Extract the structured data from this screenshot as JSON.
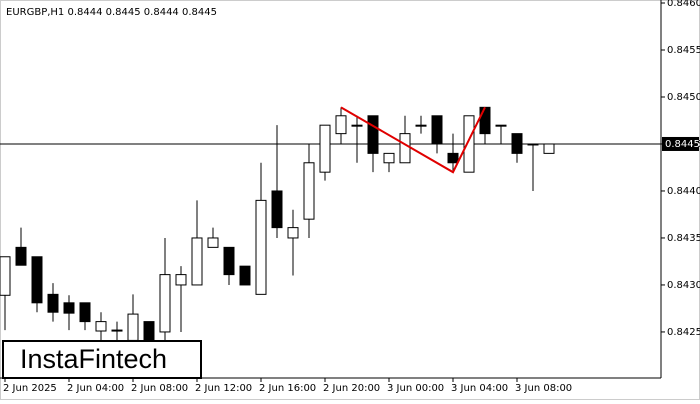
{
  "chart_data": {
    "type": "candlestick",
    "title": "EURGBP,H1  0.8444 0.8445 0.8444 0.8445",
    "categories": [
      "2 Jun 2025",
      null,
      null,
      null,
      "2 Jun 04:00",
      null,
      null,
      null,
      "2 Jun 08:00",
      null,
      null,
      null,
      "2 Jun 12:00",
      null,
      null,
      null,
      "2 Jun 16:00",
      null,
      null,
      null,
      "2 Jun 20:00",
      null,
      null,
      null,
      "3 Jun 00:00",
      null,
      null,
      null,
      "3 Jun 04:00",
      null,
      null,
      null,
      "3 Jun 08:00",
      null,
      null
    ],
    "open": [
      0.84289,
      0.8434,
      0.8433,
      0.8429,
      0.84281,
      0.84281,
      0.84251,
      0.84251,
      0.84241,
      0.84261,
      0.8425,
      0.843,
      0.843,
      0.8434,
      0.8434,
      0.8432,
      0.8429,
      0.844,
      0.8435,
      0.8437,
      0.8442,
      0.84461,
      0.8447,
      0.8448,
      0.8443,
      0.8443,
      0.8447,
      0.8448,
      0.8444,
      0.8442,
      0.84489,
      0.8447,
      0.84461,
      0.8445,
      0.8444
    ],
    "high": [
      0.8433,
      0.84361,
      0.8433,
      0.84302,
      0.84289,
      0.84281,
      0.84271,
      0.84261,
      0.8429,
      0.84261,
      0.8435,
      0.8432,
      0.8439,
      0.84361,
      0.8434,
      0.8432,
      0.8443,
      0.8447,
      0.8438,
      0.8445,
      0.8447,
      0.84489,
      0.8448,
      0.8448,
      0.8444,
      0.8448,
      0.8448,
      0.8448,
      0.84461,
      0.8448,
      0.84489,
      0.8447,
      0.84461,
      0.8445,
      0.8445
    ],
    "low": [
      0.84252,
      0.84321,
      0.84271,
      0.84261,
      0.84252,
      0.84252,
      0.84241,
      0.84236,
      0.84231,
      0.84233,
      0.84241,
      0.8425,
      0.843,
      0.8434,
      0.843,
      0.843,
      0.8429,
      0.8435,
      0.8431,
      0.8435,
      0.84411,
      0.8445,
      0.8443,
      0.8442,
      0.8442,
      0.8443,
      0.84461,
      0.8444,
      0.8442,
      0.8442,
      0.8445,
      0.8445,
      0.8443,
      0.844,
      0.8444
    ],
    "close": [
      0.8433,
      0.84321,
      0.84281,
      0.84271,
      0.8427,
      0.84261,
      0.84261,
      0.84252,
      0.84269,
      0.84241,
      0.84311,
      0.84311,
      0.8435,
      0.8435,
      0.84311,
      0.843,
      0.8439,
      0.84361,
      0.84361,
      0.8443,
      0.8447,
      0.8448,
      0.8447,
      0.8444,
      0.8444,
      0.84461,
      0.8447,
      0.8445,
      0.8443,
      0.8448,
      0.84461,
      0.8447,
      0.8444,
      0.8445,
      0.8445
    ],
    "up_color": "#ffffff",
    "down_color": "#000000",
    "ylim": [
      0.84201,
      0.846
    ],
    "yticks": [
      {
        "value": 0.8425,
        "label": "0.8425"
      },
      {
        "value": 0.843,
        "label": "0.8430"
      },
      0.8435,
      {
        "value": 0.844,
        "label": "0.8440"
      },
      0.8445,
      {
        "value": 0.845,
        "label": "0.8450"
      },
      0.8455,
      {
        "value": 0.846,
        "label": "0.8460"
      }
    ],
    "current_price": 0.8445,
    "pattern": {
      "color": "#e00000",
      "indices": [
        21,
        28,
        30
      ],
      "values": [
        0.84489,
        0.8442,
        0.84489
      ]
    },
    "logo": "InstaFintech"
  }
}
